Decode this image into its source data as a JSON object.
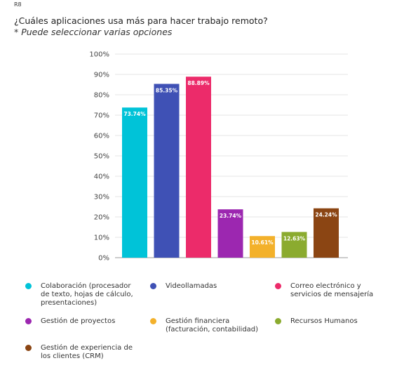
{
  "ref_label": "R8",
  "title": "¿Cuáles aplicaciones usa más para hacer trabajo remoto?",
  "subtitle": "* Puede seleccionar varias opciones",
  "chart_data": {
    "type": "bar",
    "title": "¿Cuáles aplicaciones usa más para hacer trabajo remoto?",
    "subtitle": "* Puede seleccionar varias opciones",
    "xlabel": "",
    "ylabel": "",
    "ylim": [
      0,
      100
    ],
    "yticks": [
      "0%",
      "10%",
      "20%",
      "30%",
      "40%",
      "50%",
      "60%",
      "70%",
      "80%",
      "90%",
      "100%"
    ],
    "grid": true,
    "legend_position": "bottom",
    "categories": [
      "Colaboración (procesador de texto, hojas de cálculo, presentaciones)",
      "Videollamadas",
      "Correo electrónico y servicios de mensajería",
      "Gestión de proyectos",
      "Gestión financiera (facturación, contabilidad)",
      "Recursos Humanos",
      "Gestión de experiencia de los clientes (CRM)"
    ],
    "values": [
      73.74,
      85.35,
      88.89,
      23.74,
      10.61,
      12.63,
      24.24
    ],
    "value_labels": [
      "73.74%",
      "85.35%",
      "88.89%",
      "23.74%",
      "10.61%",
      "12.63%",
      "24.24%"
    ],
    "colors": [
      "#00c3d8",
      "#3f51b5",
      "#ec2b6a",
      "#9c27b0",
      "#f3b12b",
      "#8bab2f",
      "#8b4513"
    ]
  },
  "legend": [
    {
      "lines": [
        "Colaboración (procesador",
        "de texto, hojas de cálculo,",
        "presentaciones)"
      ]
    },
    {
      "lines": [
        "Videollamadas"
      ]
    },
    {
      "lines": [
        "Correo electrónico y",
        "servicios de mensajería"
      ]
    },
    {
      "lines": [
        "Gestión de proyectos"
      ]
    },
    {
      "lines": [
        "Gestión financiera",
        "(facturación, contabilidad)"
      ]
    },
    {
      "lines": [
        "Recursos Humanos"
      ]
    },
    {
      "lines": [
        "Gestión de experiencia de",
        "los clientes (CRM)"
      ]
    }
  ]
}
